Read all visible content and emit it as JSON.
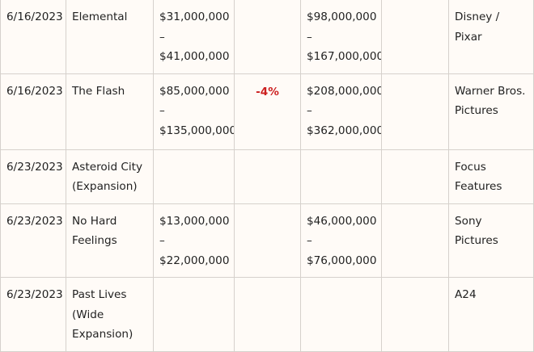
{
  "colors": {
    "background": "#fffbf7",
    "border": "#d6d1cc",
    "text": "#222222",
    "negative_change": "#cc1f1f"
  },
  "rows": [
    {
      "date": "6/16/2023",
      "title": [
        "Elemental"
      ],
      "opening": [
        "$31,000,000",
        "–",
        "$41,000,000"
      ],
      "change": "",
      "total": [
        "$98,000,000",
        "–",
        "$167,000,000"
      ],
      "extra": "",
      "distributor": [
        "Disney /",
        "Pixar"
      ]
    },
    {
      "date": "6/16/2023",
      "title": [
        "The Flash"
      ],
      "opening": [
        "$85,000,000",
        "–",
        "$135,000,000"
      ],
      "change": "-4%",
      "total": [
        "$208,000,000",
        "–",
        "$362,000,000"
      ],
      "extra": "",
      "distributor": [
        "Warner Bros.",
        "Pictures"
      ]
    },
    {
      "date": "6/23/2023",
      "title": [
        "Asteroid City",
        "(Expansion)"
      ],
      "opening": [],
      "change": "",
      "total": [],
      "extra": "",
      "distributor": [
        "Focus",
        "Features"
      ]
    },
    {
      "date": "6/23/2023",
      "title": [
        "No Hard",
        "Feelings"
      ],
      "opening": [
        "$13,000,000",
        "–",
        "$22,000,000"
      ],
      "change": "",
      "total": [
        "$46,000,000",
        "–",
        "$76,000,000"
      ],
      "extra": "",
      "distributor": [
        "Sony",
        "Pictures"
      ]
    },
    {
      "date": "6/23/2023",
      "title": [
        "Past Lives",
        "(Wide",
        "Expansion)"
      ],
      "opening": [],
      "change": "",
      "total": [],
      "extra": "",
      "distributor": [
        "A24"
      ]
    }
  ]
}
